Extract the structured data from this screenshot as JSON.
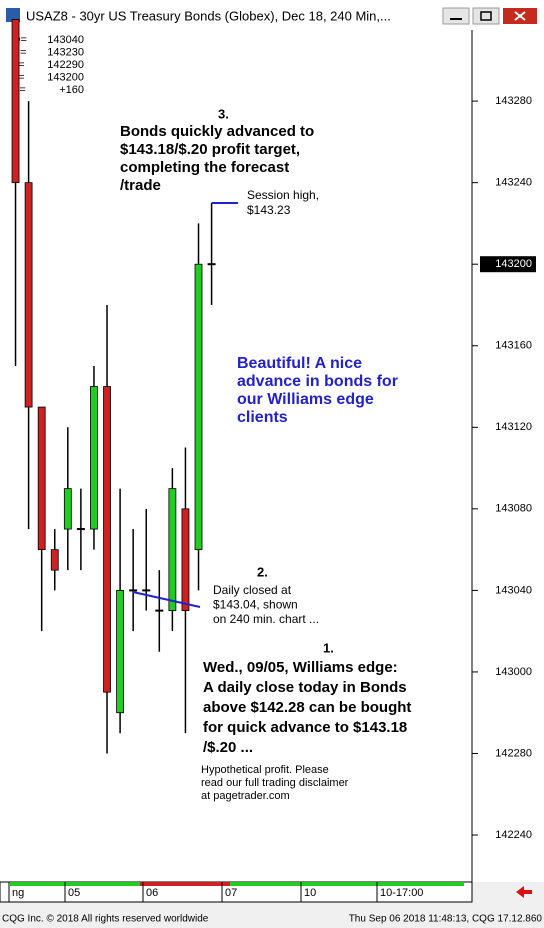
{
  "window": {
    "title": "USAZ8 - 30yr US Treasury Bonds (Globex), Dec 18, 240 Min,..."
  },
  "chart_data": {
    "type": "candlestick",
    "header": [
      {
        "label": "O=",
        "value": "143040"
      },
      {
        "label": "H=",
        "value": "143230"
      },
      {
        "label": "L=",
        "value": "142290"
      },
      {
        "label": "L=",
        "value": "143200"
      },
      {
        "label": "Δ=",
        "value": "+160"
      }
    ],
    "open": [
      144.0,
      143.75,
      143.406,
      143.1875,
      143.219,
      143.219,
      143.219,
      143.4375,
      142.9375,
      143.125,
      143.125,
      143.094,
      143.094,
      143.25,
      143.1875,
      143.625
    ],
    "high": [
      144.0,
      143.875,
      143.406,
      143.219,
      143.375,
      143.281,
      143.469,
      143.5625,
      143.281,
      143.219,
      143.25,
      143.156,
      143.3125,
      143.344,
      143.6875,
      143.71875
    ],
    "low": [
      143.469,
      143.219,
      143.0625,
      143.125,
      143.156,
      143.156,
      143.1875,
      142.875,
      142.906,
      143.0625,
      143.094,
      143.031,
      143.0625,
      142.906,
      143.125,
      143.5625
    ],
    "close": [
      143.75,
      143.406,
      143.1875,
      143.156,
      143.281,
      143.219,
      143.4375,
      142.969,
      143.125,
      143.125,
      143.125,
      143.094,
      143.281,
      143.094,
      143.625,
      143.625
    ],
    "up_color": "#22cc22",
    "down_color": "#cc2222",
    "ylim": [
      142.678,
      143.984
    ],
    "yticks": [
      {
        "value": 143.875,
        "label": "143280"
      },
      {
        "value": 143.75,
        "label": "143240"
      },
      {
        "value": 143.625,
        "label": "143200"
      },
      {
        "value": 143.5,
        "label": "143160"
      },
      {
        "value": 143.375,
        "label": "143120"
      },
      {
        "value": 143.25,
        "label": "143080"
      },
      {
        "value": 143.125,
        "label": "143040"
      },
      {
        "value": 143.0,
        "label": "143000"
      },
      {
        "value": 142.875,
        "label": "142280"
      },
      {
        "value": 142.75,
        "label": "142240"
      }
    ],
    "last_price": 143.625,
    "session_labels": [
      "ng",
      "05",
      "06",
      "07",
      "10",
      "10-17:00"
    ],
    "annotations": [
      {
        "lines": [
          "3."
        ]
      },
      {
        "lines": [
          "Bonds quickly advanced to",
          "$143.18/$.20 profit target,",
          "completing the forecast",
          "/trade"
        ]
      },
      {
        "lines": [
          "Session high,",
          "$143.23"
        ]
      },
      {
        "lines": [
          "Beautiful!  A nice",
          "advance in bonds for",
          "our Williams edge",
          "clients"
        ]
      },
      {
        "lines": [
          "2."
        ]
      },
      {
        "lines": [
          "Daily closed at",
          "$143.04, shown",
          "on 240 min. chart ..."
        ]
      },
      {
        "lines": [
          "1."
        ]
      },
      {
        "lines": [
          "Wed., 09/05, Williams edge:",
          "A daily close today in Bonds",
          "above $142.28 can be bought",
          "for quick advance to $143.18",
          "/$.20 ..."
        ]
      },
      {
        "lines": [
          "Hypothetical profit. Please",
          "read our full trading disclaimer",
          "at pagetrader.com"
        ]
      }
    ]
  },
  "footer": {
    "left": "CQG Inc. © 2018 All rights reserved worldwide",
    "right": "Thu Sep 06 2018 11:48:13, CQG 17.12.860"
  }
}
